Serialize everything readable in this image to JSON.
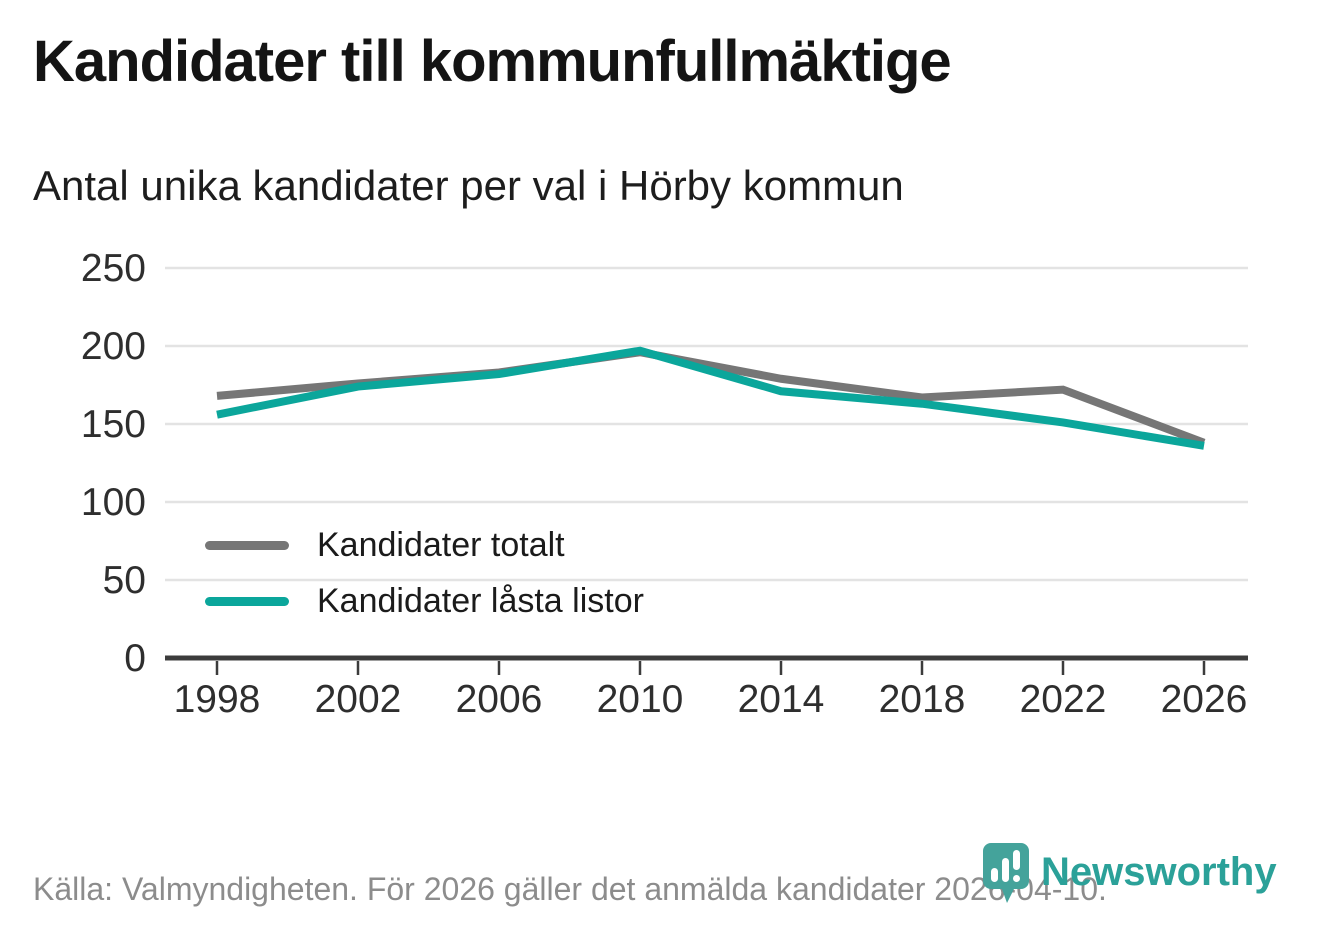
{
  "header": {
    "title": "Kandidater till kommunfullmäktige",
    "subtitle": "Antal unika kandidater per val i Hörby kommun"
  },
  "chart_data": {
    "type": "line",
    "title": "Kandidater till kommunfullmäktige",
    "subtitle": "Antal unika kandidater per val i Hörby kommun",
    "x": [
      1998,
      2002,
      2006,
      2010,
      2014,
      2018,
      2022,
      2026
    ],
    "series": [
      {
        "name": "Kandidater totalt",
        "color": "#767676",
        "values": [
          168,
          176,
          183,
          196,
          179,
          167,
          172,
          138
        ]
      },
      {
        "name": "Kandidater låsta listor",
        "color": "#0ba69b",
        "values": [
          156,
          174,
          182,
          197,
          171,
          163,
          151,
          136
        ]
      }
    ],
    "ylim": [
      0,
      250
    ],
    "yticks": [
      0,
      50,
      100,
      150,
      200,
      250
    ],
    "grid": "horizontal",
    "legend_position": "inside-left"
  },
  "footer": {
    "source": "Källa: Valmyndigheten. För 2026 gäller det anmälda kandidater 2026-04-10.",
    "brand": "Newsworthy"
  },
  "colors": {
    "total_line": "#767676",
    "locked_line": "#0ba69b",
    "brand_teal": "#2ba199",
    "gridline": "#e3e3e3",
    "axis": "#3c3c3c"
  }
}
